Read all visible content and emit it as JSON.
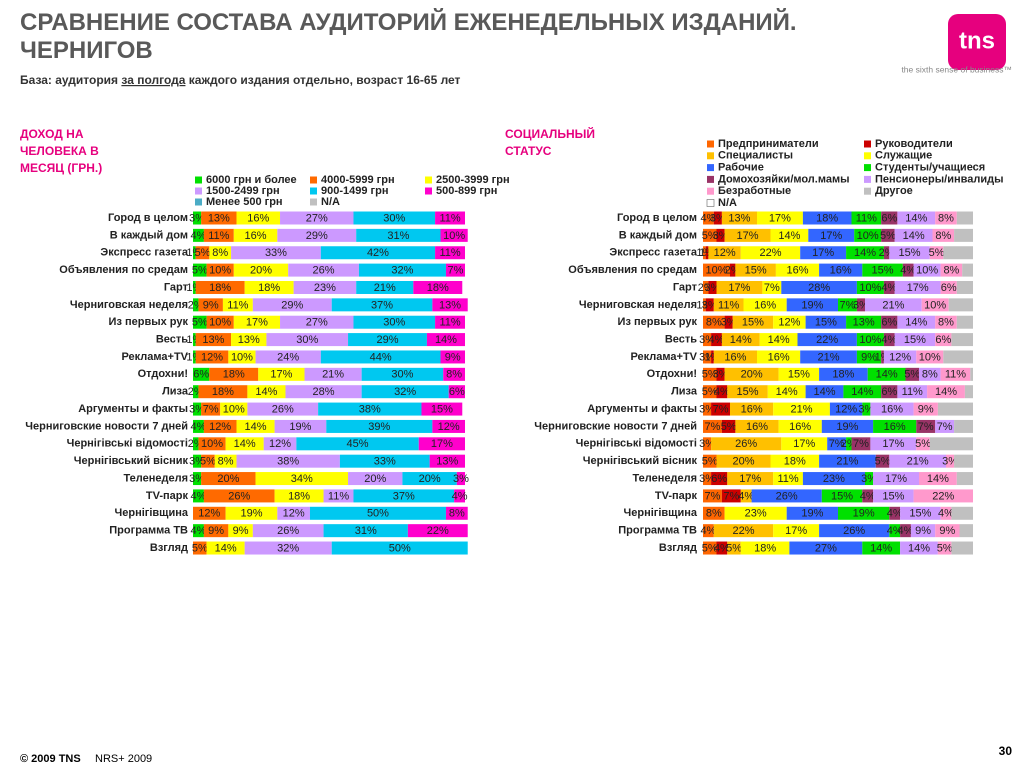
{
  "header": {
    "title_lines": [
      "СРАВНЕНИЕ СОСТАВА АУДИТОРИЙ ЕЖЕНЕДЕЛЬНЫХ ИЗДАНИЙ.",
      "ЧЕРНИГОВ"
    ],
    "subtitle": {
      "before": "База: аудитория",
      "underlined": "за полгода",
      "after": "каждого издания отдельно, возраст 16-65 лет"
    }
  },
  "logo": {
    "text": "tns",
    "tagline": "the sixth sense of business™"
  },
  "footer": {
    "copyright": "© 2009 TNS",
    "source": "NRS+ 2009",
    "page": "30"
  },
  "chart_data": [
    {
      "type": "bar",
      "stacked": true,
      "orientation": "horizontal",
      "title": "ДОХОД НА ЧЕЛОВЕКА В МЕСЯЦ (ГРН.)",
      "legend_columns": 3,
      "xlim": [
        0,
        100
      ],
      "categories": [
        "Город в целом",
        "В каждый дом",
        "Экспресс газета",
        "Объявления по средам",
        "Гарт",
        "Черниговская неделя",
        "Из первых рук",
        "Весть",
        "Реклама+TV",
        "Отдохни!",
        "Лиза",
        "Аргументы и факты",
        "Черниговские новости 7 дней",
        "Чернігівські відомості",
        "Чернігівський вісник",
        "Теленеделя",
        "TV-парк",
        "Чернігівщина",
        "Программа ТВ",
        "Взгляд"
      ],
      "series": [
        {
          "name": "6000 грн и более",
          "color": "#00e000",
          "values": [
            3,
            4,
            1,
            5,
            1,
            2,
            5,
            1,
            1,
            6,
            2,
            3,
            4,
            2,
            3,
            3,
            4,
            null,
            4,
            null
          ],
          "value_labels": [
            "3%",
            "4%",
            "1%",
            "5%",
            "1%",
            "2%",
            "5%",
            "1%",
            "1%",
            "6%",
            "2%",
            "3%",
            "4%",
            "2%",
            "3%",
            "3%",
            "4%",
            null,
            "4%",
            null
          ]
        },
        {
          "name": "4000-5999 грн",
          "color": "#ff6a00",
          "values": [
            13,
            11,
            5,
            10,
            18,
            9,
            10,
            13,
            12,
            18,
            18,
            7,
            12,
            10,
            5,
            20,
            26,
            12,
            9,
            5
          ],
          "value_labels": [
            "13%",
            "11%",
            "5%",
            "10%",
            "18%",
            "9%",
            "10%",
            "13%",
            "12%",
            "18%",
            "18%",
            "7%",
            "12%",
            "10%",
            "5%",
            "20%",
            "26%",
            "12%",
            "9%",
            "5%"
          ]
        },
        {
          "name": "2500-3999 грн",
          "color": "#ffff00",
          "values": [
            16,
            16,
            8,
            20,
            18,
            11,
            17,
            13,
            10,
            17,
            14,
            10,
            14,
            14,
            8,
            34,
            18,
            19,
            9,
            14
          ],
          "value_labels": [
            "16%",
            "16%",
            "8%",
            "20%",
            "18%",
            "11%",
            "17%",
            "13%",
            "10%",
            "17%",
            "14%",
            "10%",
            "14%",
            "14%",
            "8%",
            "34%",
            "18%",
            "19%",
            "9%",
            "14%"
          ]
        },
        {
          "name": "1500-2499 грн",
          "color": "#cc99ff",
          "values": [
            27,
            29,
            33,
            26,
            23,
            29,
            27,
            30,
            24,
            21,
            28,
            26,
            19,
            12,
            38,
            20,
            11,
            12,
            26,
            32
          ],
          "value_labels": [
            "27%",
            "29%",
            "33%",
            "26%",
            "23%",
            "29%",
            "27%",
            "30%",
            "24%",
            "21%",
            "28%",
            "26%",
            "19%",
            "12%",
            "38%",
            "20%",
            "11%",
            "12%",
            "26%",
            "32%"
          ]
        },
        {
          "name": "900-1499 грн",
          "color": "#00c8f0",
          "values": [
            30,
            31,
            42,
            32,
            21,
            37,
            30,
            29,
            44,
            30,
            32,
            38,
            39,
            45,
            33,
            20,
            37,
            50,
            31,
            50
          ],
          "value_labels": [
            "30%",
            "31%",
            "42%",
            "32%",
            "21%",
            "37%",
            "30%",
            "29%",
            "44%",
            "30%",
            "32%",
            "38%",
            "39%",
            "45%",
            "33%",
            "20%",
            "37%",
            "50%",
            "31%",
            "50%"
          ]
        },
        {
          "name": "500-899 грн",
          "color": "#ff00cc",
          "values": [
            11,
            10,
            11,
            7,
            18,
            13,
            11,
            14,
            9,
            8,
            6,
            15,
            12,
            17,
            13,
            3,
            4,
            8,
            22,
            null
          ],
          "value_labels": [
            "11%",
            "10%",
            "11%",
            "7%",
            "18%",
            "13%",
            "11%",
            "14%",
            "9%",
            "8%",
            "6%",
            "15%",
            "12%",
            "17%",
            "13%",
            "3%",
            "4%",
            "8%",
            "22%",
            null
          ]
        },
        {
          "name": "Менее 500 грн",
          "color": "#4bacc6",
          "values": [
            null,
            null,
            null,
            null,
            null,
            null,
            null,
            null,
            null,
            null,
            null,
            null,
            null,
            null,
            null,
            null,
            null,
            null,
            null,
            null
          ]
        },
        {
          "name": "N/A",
          "color": "#c0c0c0",
          "values": [
            null,
            null,
            null,
            null,
            null,
            null,
            null,
            null,
            null,
            null,
            null,
            null,
            null,
            null,
            null,
            null,
            null,
            null,
            null,
            null
          ]
        }
      ]
    },
    {
      "type": "bar",
      "stacked": true,
      "orientation": "horizontal",
      "title": "СОЦИАЛЬНЫЙ СТАТУС",
      "legend_columns": 2,
      "xlim": [
        0,
        100
      ],
      "categories": [
        "Город в целом",
        "В каждый дом",
        "Экспресс газета",
        "Объявления по средам",
        "Гарт",
        "Черниговская неделя",
        "Из первых рук",
        "Весть",
        "Реклама+TV",
        "Отдохни!",
        "Лиза",
        "Аргументы и факты",
        "Черниговские новости 7 дней",
        "Чернігівські відомості",
        "Чернігівський вісник",
        "Теленеделя",
        "TV-парк",
        "Чернігівщина",
        "Программа ТВ",
        "Взгляд"
      ],
      "series": [
        {
          "name": "Предприниматели",
          "color": "#ff6600",
          "values": [
            4,
            5,
            1,
            10,
            2,
            1,
            8,
            3,
            3,
            5,
            5,
            3,
            7,
            3,
            5,
            3,
            7,
            8,
            4,
            5
          ],
          "value_labels": [
            "4%",
            "5%",
            "1%",
            "10%",
            "2%",
            "1%",
            "8%",
            "3%",
            "3%",
            "5%",
            "5%",
            "3%",
            "7%",
            "3%",
            "5%",
            "3%",
            "7%",
            "8%",
            "4%",
            "5%"
          ]
        },
        {
          "name": "Руководители",
          "color": "#cc0000",
          "values": [
            3,
            3,
            1,
            2,
            3,
            3,
            3,
            4,
            1,
            3,
            4,
            7,
            5,
            null,
            null,
            6,
            7,
            null,
            null,
            4
          ],
          "value_labels": [
            "3%",
            "3%",
            "1%",
            "2%",
            "3%",
            "3%",
            "3%",
            "4%",
            "1%",
            "3%",
            "4%",
            "7%",
            "5%",
            null,
            null,
            "6%",
            "7%",
            null,
            null,
            "4%"
          ]
        },
        {
          "name": "Специалисты",
          "color": "#ffc000",
          "values": [
            13,
            17,
            12,
            15,
            17,
            11,
            15,
            14,
            16,
            20,
            15,
            16,
            16,
            26,
            20,
            17,
            4,
            null,
            22,
            5
          ],
          "value_labels": [
            "13%",
            "17%",
            "12%",
            "15%",
            "17%",
            "11%",
            "15%",
            "14%",
            "16%",
            "20%",
            "15%",
            "16%",
            "16%",
            "26%",
            "20%",
            "17%",
            "4%",
            null,
            "22%",
            "5%"
          ]
        },
        {
          "name": "Служащие",
          "color": "#ffff00",
          "values": [
            17,
            14,
            22,
            16,
            7,
            16,
            12,
            14,
            16,
            15,
            14,
            21,
            16,
            17,
            18,
            11,
            null,
            23,
            17,
            18
          ],
          "value_labels": [
            "17%",
            "14%",
            "22%",
            "16%",
            "7%",
            "16%",
            "12%",
            "14%",
            "16%",
            "15%",
            "14%",
            "21%",
            "16%",
            "17%",
            "18%",
            "11%",
            null,
            "23%",
            "17%",
            "18%"
          ]
        },
        {
          "name": "Рабочие",
          "color": "#3366ff",
          "values": [
            18,
            17,
            17,
            16,
            28,
            19,
            15,
            22,
            21,
            18,
            14,
            12,
            19,
            7,
            21,
            23,
            26,
            19,
            26,
            27
          ],
          "value_labels": [
            "18%",
            "17%",
            "17%",
            "16%",
            "28%",
            "19%",
            "15%",
            "22%",
            "21%",
            "18%",
            "14%",
            "12%",
            "19%",
            "7%",
            "21%",
            "23%",
            "26%",
            "19%",
            "26%",
            "27%"
          ]
        },
        {
          "name": "Студенты/учащиеся",
          "color": "#00e000",
          "values": [
            11,
            10,
            14,
            15,
            10,
            7,
            13,
            10,
            9,
            14,
            14,
            3,
            16,
            2,
            null,
            3,
            15,
            19,
            4,
            14
          ],
          "value_labels": [
            "11%",
            "10%",
            "14%",
            "15%",
            "10%",
            "7%",
            "13%",
            "10%",
            "9%",
            "14%",
            "14%",
            "3%",
            "16%",
            "2%",
            null,
            "3%",
            "15%",
            "19%",
            "4%",
            "14%"
          ]
        },
        {
          "name": "Домохозяйки/мол.мамы",
          "color": "#993366",
          "values": [
            6,
            5,
            2,
            4,
            4,
            3,
            6,
            4,
            1,
            5,
            6,
            null,
            7,
            7,
            5,
            null,
            4,
            4,
            4,
            null
          ],
          "value_labels": [
            "6%",
            "5%",
            "2%",
            "4%",
            "4%",
            "3%",
            "6%",
            "4%",
            "1%",
            "5%",
            "6%",
            null,
            "7%",
            "7%",
            "5%",
            null,
            "4%",
            "4%",
            "4%",
            null
          ]
        },
        {
          "name": "Пенсионеры/инвалиды",
          "color": "#cc99ff",
          "values": [
            14,
            14,
            15,
            10,
            17,
            21,
            14,
            15,
            12,
            8,
            11,
            16,
            7,
            17,
            21,
            17,
            15,
            15,
            9,
            14
          ],
          "value_labels": [
            "14%",
            "14%",
            "15%",
            "10%",
            "17%",
            "21%",
            "14%",
            "15%",
            "12%",
            "8%",
            "11%",
            "16%",
            "7%",
            "17%",
            "21%",
            "17%",
            "15%",
            "15%",
            "9%",
            "14%"
          ]
        },
        {
          "name": "Безработные",
          "color": "#ff99cc",
          "values": [
            8,
            8,
            5,
            8,
            6,
            10,
            8,
            6,
            10,
            11,
            14,
            9,
            null,
            5,
            3,
            14,
            22,
            4,
            9,
            5
          ],
          "value_labels": [
            "8%",
            "8%",
            "5%",
            "8%",
            "6%",
            "10%",
            "8%",
            "6%",
            "10%",
            "11%",
            "14%",
            "9%",
            null,
            "5%",
            "3%",
            "14%",
            "22%",
            "4%",
            "9%",
            "5%"
          ]
        },
        {
          "name": "Другое",
          "color": "#c0c0c0",
          "values": [
            6,
            7,
            11,
            4,
            6,
            9,
            6,
            8,
            11,
            1,
            3,
            13,
            7,
            16,
            7,
            6,
            null,
            8,
            5,
            8
          ]
        },
        {
          "name": "N/A",
          "color": "#ffffff",
          "values": [
            null,
            null,
            null,
            null,
            null,
            null,
            null,
            null,
            null,
            null,
            null,
            null,
            null,
            null,
            null,
            null,
            null,
            null,
            null,
            null
          ]
        }
      ]
    }
  ]
}
